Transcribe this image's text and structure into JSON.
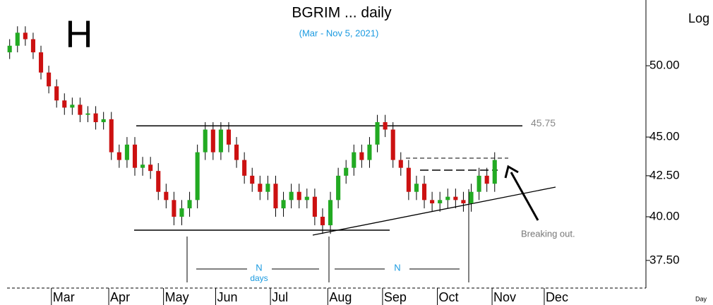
{
  "chart_data": {
    "type": "candlestick",
    "big_letter": "H",
    "title": "BGRIM ... daily",
    "subtitle": "(Mar - Nov 5, 2021)",
    "scale_label": "Log",
    "x_unit_label": "Day",
    "log_scale": true,
    "ylim": [
      36,
      55.1
    ],
    "yticks": [
      {
        "value": 37.5,
        "label": "37.50"
      },
      {
        "value": 40,
        "label": "40.00"
      },
      {
        "value": 42.5,
        "label": "42.50"
      },
      {
        "value": 45,
        "label": "45.00"
      },
      {
        "value": 50,
        "label": "50.00"
      }
    ],
    "xlim": [
      0,
      245
    ],
    "xticks": [
      {
        "value": 17,
        "label": "Mar"
      },
      {
        "value": 39,
        "label": "Apr"
      },
      {
        "value": 60,
        "label": "May"
      },
      {
        "value": 80,
        "label": "Jun"
      },
      {
        "value": 101,
        "label": "Jul"
      },
      {
        "value": 123,
        "label": "Aug"
      },
      {
        "value": 144,
        "label": "Sep"
      },
      {
        "value": 165,
        "label": "Oct"
      },
      {
        "value": 186,
        "label": "Nov"
      },
      {
        "value": 206,
        "label": "Dec"
      }
    ],
    "up_color": "#22aa22",
    "down_color": "#cc1111",
    "x": [
      1,
      4,
      7,
      10,
      13,
      16,
      19,
      22,
      25,
      28,
      31,
      34,
      37,
      40,
      43,
      46,
      49,
      52,
      55,
      58,
      61,
      64,
      67,
      70,
      73,
      76,
      79,
      82,
      85,
      88,
      91,
      94,
      97,
      100,
      103,
      106,
      109,
      112,
      115,
      118,
      121,
      124,
      127,
      130,
      133,
      136,
      139,
      142,
      145,
      148,
      151,
      154,
      157,
      160,
      163,
      166,
      169,
      172,
      175,
      178,
      181,
      184,
      187
    ],
    "open": [
      51,
      51.5,
      52.5,
      52,
      51,
      49.5,
      48.5,
      47.5,
      47,
      47.2,
      46.5,
      46.6,
      46,
      46.2,
      44,
      43.5,
      44.5,
      43,
      43.2,
      42.8,
      41.5,
      41,
      40,
      40.5,
      41,
      44,
      45.5,
      44,
      45.5,
      44.5,
      43.5,
      42.5,
      42,
      41.5,
      42,
      40.5,
      41,
      41.5,
      41,
      41.2,
      40,
      39.5,
      41,
      42.5,
      43,
      44,
      43.5,
      44.5,
      46,
      45.5,
      43.5,
      43,
      41.5,
      42,
      41,
      40.8,
      41,
      41.2,
      41,
      40.8,
      41.5,
      42.5,
      42
    ],
    "high": [
      52,
      53,
      53,
      52.5,
      51.5,
      50,
      49,
      48,
      47.7,
      47.7,
      47.1,
      47.1,
      46.7,
      46.7,
      44.5,
      45,
      45,
      43.7,
      43.7,
      43.3,
      42,
      41.5,
      41,
      41.5,
      44.5,
      46,
      46,
      46,
      46,
      45,
      44,
      43,
      42.5,
      42.5,
      42.5,
      41.5,
      42,
      42,
      41.7,
      41.7,
      40.5,
      41.5,
      43,
      43.5,
      44.5,
      44.5,
      45,
      46.5,
      46.5,
      46,
      44,
      43.5,
      42.5,
      42.5,
      41.5,
      41.5,
      41.7,
      41.7,
      41.5,
      42,
      43,
      43,
      44
    ],
    "low": [
      50.5,
      51,
      51.5,
      50.5,
      49,
      48,
      47,
      46.5,
      46.5,
      46,
      46,
      45.5,
      45.5,
      43.5,
      43,
      43,
      42.5,
      42.5,
      42.3,
      41,
      40.5,
      39.5,
      39.5,
      40,
      40.5,
      43.5,
      43.5,
      43.5,
      44,
      43,
      42,
      41.5,
      41,
      41,
      40,
      40,
      40.5,
      40.5,
      40.5,
      39.5,
      39,
      39,
      40.5,
      42,
      42.5,
      43,
      43,
      44,
      45,
      43,
      42.5,
      41,
      41,
      40.5,
      40.3,
      40.3,
      40.5,
      40.5,
      40.3,
      40.3,
      41,
      41.5,
      41.5
    ],
    "close": [
      51.5,
      52.5,
      52,
      51,
      49.5,
      48.5,
      47.5,
      47,
      47.2,
      46.5,
      46.6,
      46,
      46.2,
      44,
      43.5,
      44.5,
      43,
      43.2,
      42.8,
      41.5,
      41,
      40,
      40.5,
      41,
      44,
      45.5,
      44,
      45.5,
      44.5,
      43.5,
      42.5,
      42,
      41.5,
      42,
      40.5,
      41,
      41.5,
      41,
      41.2,
      40,
      39.5,
      41,
      42.5,
      43,
      44,
      43.5,
      44.5,
      46,
      45.5,
      43.5,
      43,
      41.5,
      42,
      41,
      40.8,
      41,
      41.2,
      41,
      40.8,
      41.5,
      42.5,
      42,
      43.5
    ],
    "resistance": {
      "value": 45.75,
      "label": "45.75"
    },
    "annotations": {
      "breakout": "Breaking out.",
      "n1": "N",
      "days": "days",
      "n2": "N"
    }
  }
}
